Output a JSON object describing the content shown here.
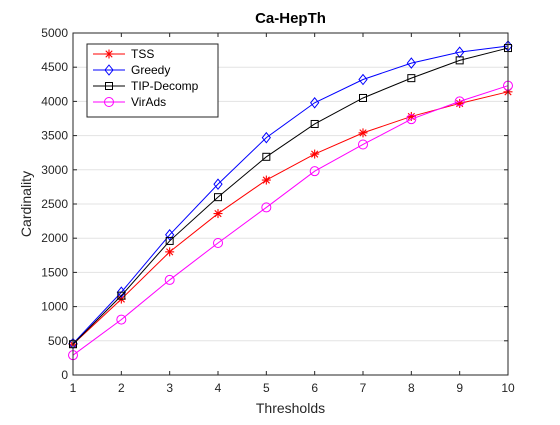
{
  "chart_data": {
    "type": "line",
    "title": "Ca-HepTh",
    "xlabel": "Thresholds",
    "ylabel": "Cardinality",
    "x": [
      1,
      2,
      3,
      4,
      5,
      6,
      7,
      8,
      9,
      10
    ],
    "xlim": [
      1,
      10
    ],
    "ylim": [
      0,
      5000
    ],
    "xticks": [
      1,
      2,
      3,
      4,
      5,
      6,
      7,
      8,
      9,
      10
    ],
    "yticks": [
      0,
      500,
      1000,
      1500,
      2000,
      2500,
      3000,
      3500,
      4000,
      4500,
      5000
    ],
    "grid": false,
    "legend_position": "top-left",
    "series": [
      {
        "name": "TSS",
        "color": "#ff0000",
        "marker": "asterisk",
        "values": [
          450,
          1110,
          1800,
          2360,
          2850,
          3230,
          3540,
          3780,
          3970,
          4140
        ]
      },
      {
        "name": "Greedy",
        "color": "#0000ff",
        "marker": "diamond",
        "values": [
          460,
          1210,
          2050,
          2790,
          3470,
          3980,
          4320,
          4560,
          4720,
          4810
        ]
      },
      {
        "name": "TIP-Decomp",
        "color": "#000000",
        "marker": "square",
        "values": [
          450,
          1160,
          1960,
          2600,
          3190,
          3670,
          4050,
          4340,
          4600,
          4780
        ]
      },
      {
        "name": "VirAds",
        "color": "#ff00ff",
        "marker": "circle",
        "values": [
          290,
          810,
          1390,
          1930,
          2450,
          2980,
          3370,
          3740,
          4000,
          4230
        ]
      }
    ]
  }
}
